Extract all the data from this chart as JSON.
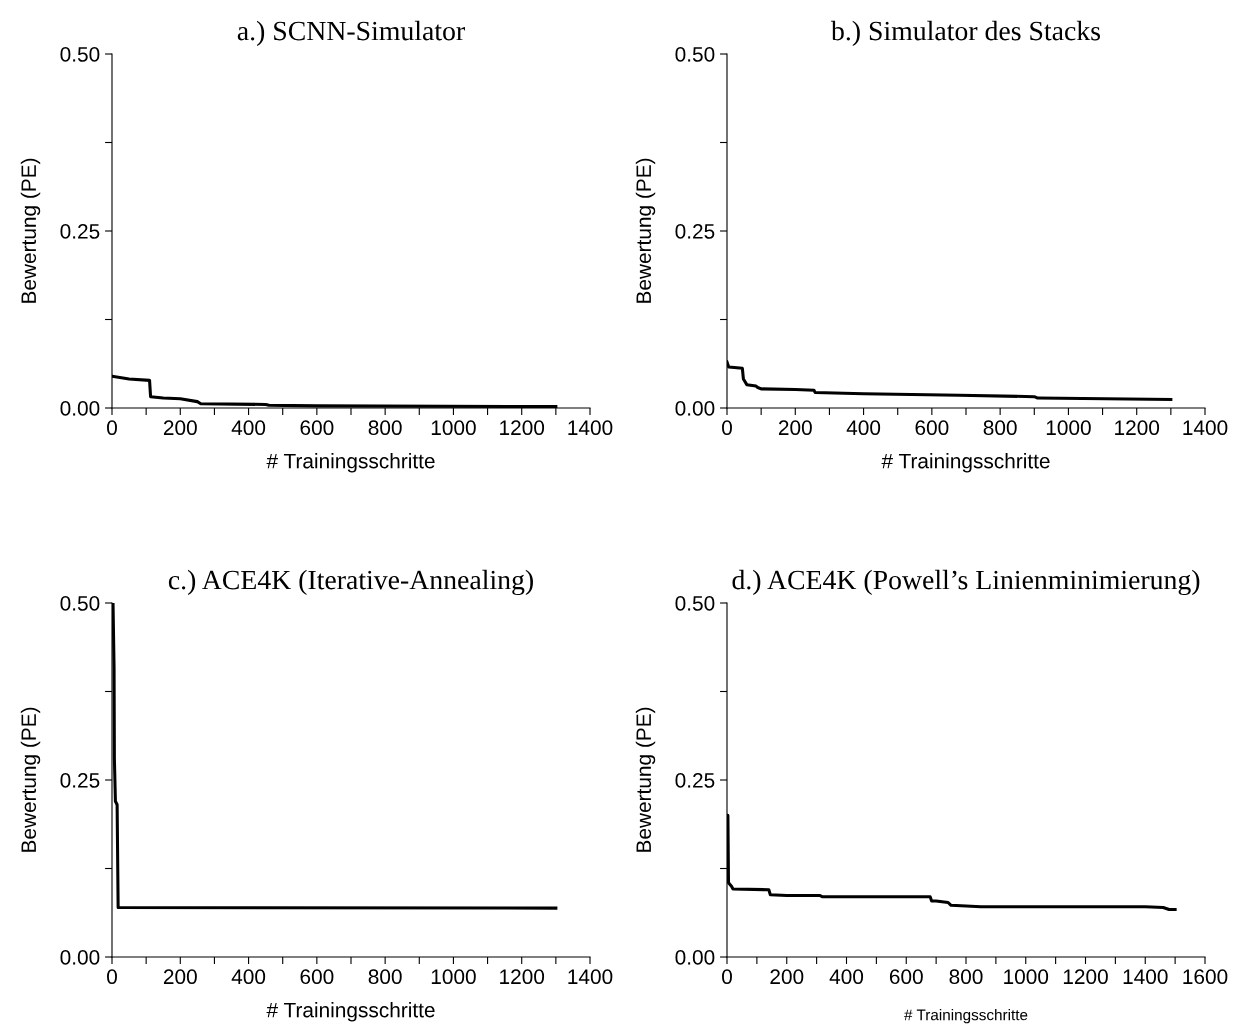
{
  "chart_data": [
    {
      "type": "line",
      "title": "a.) SCNN-Simulator",
      "xlabel": "# Trainingsschritte",
      "ylabel": "Bewertung (PE)",
      "series": [
        {
          "color": "#000000",
          "x": [
            0,
            50,
            110,
            113,
            150,
            200,
            250,
            260,
            450,
            460,
            600,
            1300
          ],
          "values": [
            0.045,
            0.041,
            0.039,
            0.016,
            0.014,
            0.013,
            0.009,
            0.006,
            0.005,
            0.004,
            0.003,
            0.002
          ]
        }
      ],
      "xlim": [
        0,
        1400
      ],
      "xticks": [
        0,
        {
          "value": 100,
          "label": null
        },
        200,
        {
          "value": 300,
          "label": null
        },
        400,
        {
          "value": 500,
          "label": null
        },
        600,
        {
          "value": 700,
          "label": null
        },
        800,
        {
          "value": 900,
          "label": null
        },
        1000,
        {
          "value": 1100,
          "label": null
        },
        1200,
        {
          "value": 1300,
          "label": null
        },
        1400
      ],
      "ylim": [
        0,
        0.5
      ],
      "yticks": [
        {
          "value": 0,
          "label": "0.00"
        },
        {
          "value": 0.125,
          "label": null
        },
        {
          "value": 0.25,
          "label": "0.25"
        },
        {
          "value": 0.375,
          "label": null
        },
        {
          "value": 0.5,
          "label": "0.50"
        }
      ],
      "grid": false
    },
    {
      "type": "line",
      "title": "b.) Simulator des Stacks",
      "xlabel": "# Trainingsschritte",
      "ylabel": "Bewertung (PE)",
      "series": [
        {
          "color": "#000000",
          "x": [
            0,
            5,
            45,
            48,
            58,
            85,
            90,
            100,
            200,
            255,
            258,
            400,
            680,
            900,
            910,
            1300
          ],
          "values": [
            0.065,
            0.058,
            0.056,
            0.041,
            0.033,
            0.031,
            0.029,
            0.027,
            0.026,
            0.025,
            0.022,
            0.02,
            0.018,
            0.016,
            0.014,
            0.012
          ]
        }
      ],
      "xlim": [
        0,
        1400
      ],
      "xticks": [
        0,
        {
          "value": 100,
          "label": null
        },
        200,
        {
          "value": 300,
          "label": null
        },
        400,
        {
          "value": 500,
          "label": null
        },
        600,
        {
          "value": 700,
          "label": null
        },
        800,
        {
          "value": 900,
          "label": null
        },
        1000,
        {
          "value": 1100,
          "label": null
        },
        1200,
        {
          "value": 1300,
          "label": null
        },
        1400
      ],
      "ylim": [
        0,
        0.5
      ],
      "yticks": [
        {
          "value": 0,
          "label": "0.00"
        },
        {
          "value": 0.125,
          "label": null
        },
        {
          "value": 0.25,
          "label": "0.25"
        },
        {
          "value": 0.375,
          "label": null
        },
        {
          "value": 0.5,
          "label": "0.50"
        }
      ],
      "grid": false
    },
    {
      "type": "line",
      "title": "c.) ACE4K (Iterative-Annealing)",
      "xlabel": "# Trainingsschritte",
      "ylabel": "Bewertung (PE)",
      "series": [
        {
          "color": "#000000",
          "x": [
            0,
            3,
            6,
            7,
            10,
            15,
            18,
            1300
          ],
          "values": [
            0.5,
            0.5,
            0.41,
            0.28,
            0.22,
            0.215,
            0.07,
            0.069
          ]
        }
      ],
      "xlim": [
        0,
        1400
      ],
      "xticks": [
        0,
        {
          "value": 100,
          "label": null
        },
        200,
        {
          "value": 300,
          "label": null
        },
        400,
        {
          "value": 500,
          "label": null
        },
        600,
        {
          "value": 700,
          "label": null
        },
        800,
        {
          "value": 900,
          "label": null
        },
        1000,
        {
          "value": 1100,
          "label": null
        },
        1200,
        {
          "value": 1300,
          "label": null
        },
        1400
      ],
      "ylim": [
        0,
        0.5
      ],
      "yticks": [
        {
          "value": 0,
          "label": "0.00"
        },
        {
          "value": 0.125,
          "label": null
        },
        {
          "value": 0.25,
          "label": "0.25"
        },
        {
          "value": 0.375,
          "label": null
        },
        {
          "value": 0.5,
          "label": "0.50"
        }
      ],
      "grid": false
    },
    {
      "type": "line",
      "title": "d.) ACE4K (Powell’s Linienminimierung)",
      "xlabel": "# Trainingsschritte",
      "ylabel": "Bewertung (PE)",
      "series": [
        {
          "color": "#000000",
          "x": [
            0,
            3,
            5,
            15,
            20,
            140,
            145,
            200,
            310,
            320,
            680,
            685,
            700,
            740,
            750,
            850,
            1400,
            1460,
            1480,
            1500
          ],
          "values": [
            0.2,
            0.2,
            0.105,
            0.1,
            0.096,
            0.095,
            0.088,
            0.087,
            0.087,
            0.085,
            0.085,
            0.079,
            0.079,
            0.077,
            0.073,
            0.071,
            0.071,
            0.07,
            0.067,
            0.067
          ]
        }
      ],
      "xlim": [
        0,
        1600
      ],
      "xticks": [
        0,
        {
          "value": 100,
          "label": null
        },
        200,
        {
          "value": 300,
          "label": null
        },
        400,
        {
          "value": 500,
          "label": null
        },
        600,
        {
          "value": 700,
          "label": null
        },
        800,
        {
          "value": 900,
          "label": null
        },
        1000,
        {
          "value": 1100,
          "label": null
        },
        1200,
        {
          "value": 1300,
          "label": null
        },
        1400,
        {
          "value": 1500,
          "label": null
        },
        1600
      ],
      "ylim": [
        0,
        0.5
      ],
      "yticks": [
        {
          "value": 0,
          "label": "0.00"
        },
        {
          "value": 0.125,
          "label": null
        },
        {
          "value": 0.25,
          "label": "0.25"
        },
        {
          "value": 0.375,
          "label": null
        },
        {
          "value": 0.5,
          "label": "0.50"
        }
      ],
      "grid": false
    }
  ]
}
